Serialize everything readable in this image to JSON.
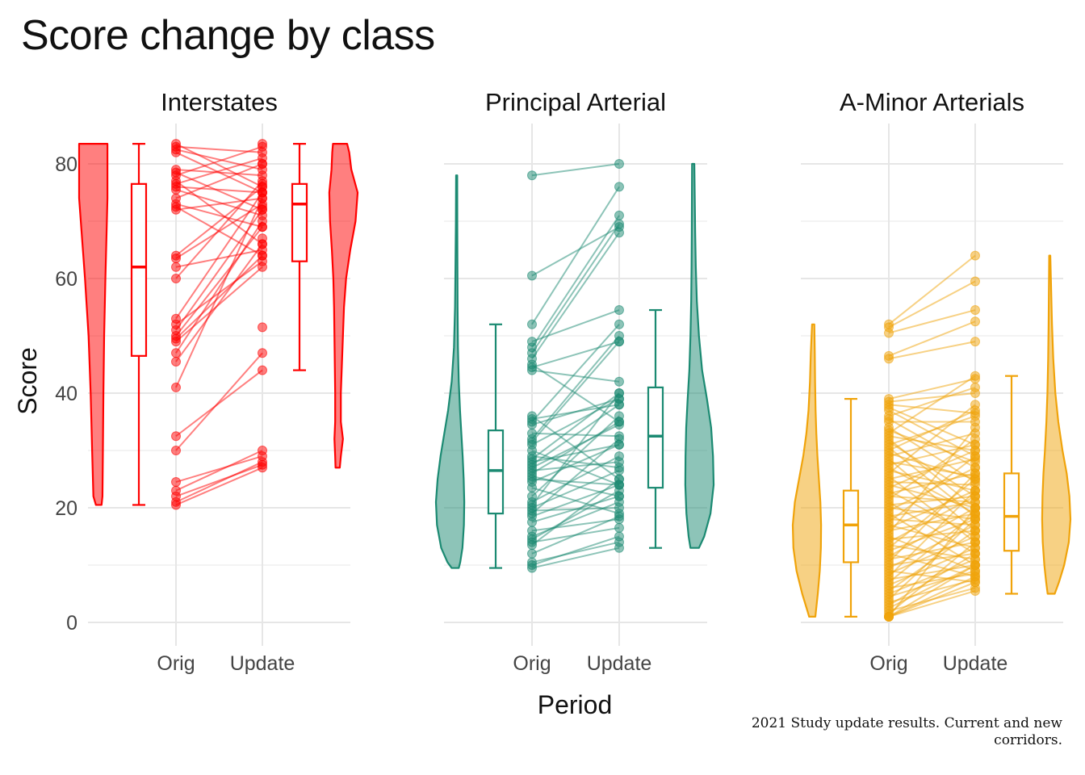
{
  "title": "Score change by class",
  "caption": "2021 Study update results. Current and new corridors.",
  "chart_data": {
    "type": "raincloud-paired",
    "xlabel": "Period",
    "ylabel": "Score",
    "ylim": [
      0,
      84
    ],
    "y_ticks": [
      0,
      20,
      40,
      60,
      80
    ],
    "x_categories": [
      "Orig",
      "Update"
    ],
    "grid": true,
    "facets": [
      {
        "name": "Interstates",
        "color": "#FF0000",
        "box_orig": {
          "min": 20.5,
          "q1": 46.5,
          "median": 62,
          "q3": 76.5,
          "max": 83.5
        },
        "box_update": {
          "min": 44,
          "q1": 63,
          "median": 73,
          "q3": 76.5,
          "max": 83.5
        },
        "violin_orig": [
          [
            20.5,
            0.2
          ],
          [
            22,
            0.32
          ],
          [
            30,
            0.38
          ],
          [
            40,
            0.45
          ],
          [
            50,
            0.55
          ],
          [
            60,
            0.72
          ],
          [
            68,
            0.88
          ],
          [
            74,
            1.0
          ],
          [
            80,
            1.0
          ],
          [
            83.5,
            1.0
          ]
        ],
        "violin_update": [
          [
            27,
            0.15
          ],
          [
            29,
            0.2
          ],
          [
            32,
            0.3
          ],
          [
            35,
            0.2
          ],
          [
            40,
            0.2
          ],
          [
            45,
            0.25
          ],
          [
            50,
            0.3
          ],
          [
            55,
            0.35
          ],
          [
            60,
            0.45
          ],
          [
            65,
            0.65
          ],
          [
            70,
            0.9
          ],
          [
            75,
            1.0
          ],
          [
            79,
            0.7
          ],
          [
            82,
            0.6
          ],
          [
            83.5,
            0.5
          ]
        ],
        "pairs": [
          [
            83.5,
            76
          ],
          [
            83,
            82
          ],
          [
            82.5,
            79
          ],
          [
            82,
            75
          ],
          [
            79,
            78
          ],
          [
            78.5,
            72
          ],
          [
            78,
            83
          ],
          [
            77,
            66
          ],
          [
            76.5,
            81
          ],
          [
            76,
            75
          ],
          [
            75.5,
            71
          ],
          [
            74,
            80
          ],
          [
            73,
            69
          ],
          [
            72.5,
            64
          ],
          [
            72,
            74
          ],
          [
            64,
            76
          ],
          [
            63.5,
            73
          ],
          [
            62,
            65
          ],
          [
            60,
            77
          ],
          [
            53,
            75
          ],
          [
            52,
            63
          ],
          [
            51,
            72
          ],
          [
            50,
            69
          ],
          [
            49.5,
            64
          ],
          [
            49,
            62
          ],
          [
            47,
            70
          ],
          [
            45.5,
            66
          ],
          [
            41,
            74
          ],
          [
            32.5,
            44
          ],
          [
            30,
            47
          ],
          [
            24.5,
            29
          ],
          [
            23,
            30
          ],
          [
            22,
            27.5
          ],
          [
            21,
            28
          ],
          [
            20.5,
            27
          ]
        ],
        "extra_update": [
          51.5,
          72.5,
          76.5,
          80,
          83.5,
          67
        ]
      },
      {
        "name": "Principal Arterial",
        "color": "#1B8A72",
        "box_orig": {
          "min": 9.5,
          "q1": 19,
          "median": 26.5,
          "q3": 33.5,
          "max": 52
        },
        "box_update": {
          "min": 13,
          "q1": 23.5,
          "median": 32.5,
          "q3": 41,
          "max": 54.5
        },
        "violin_orig": [
          [
            9.5,
            0.25
          ],
          [
            10.5,
            0.45
          ],
          [
            13,
            0.75
          ],
          [
            17,
            0.95
          ],
          [
            21,
            1.0
          ],
          [
            25,
            0.92
          ],
          [
            29,
            0.78
          ],
          [
            33,
            0.6
          ],
          [
            37,
            0.42
          ],
          [
            42,
            0.25
          ],
          [
            48,
            0.14
          ],
          [
            55,
            0.09
          ],
          [
            62,
            0.07
          ],
          [
            70,
            0.05
          ],
          [
            78,
            0.04
          ]
        ],
        "violin_update": [
          [
            13,
            0.3
          ],
          [
            15,
            0.55
          ],
          [
            19,
            0.85
          ],
          [
            24,
            1.0
          ],
          [
            29,
            0.97
          ],
          [
            34,
            0.88
          ],
          [
            39,
            0.68
          ],
          [
            44,
            0.45
          ],
          [
            50,
            0.3
          ],
          [
            56,
            0.2
          ],
          [
            62,
            0.15
          ],
          [
            68,
            0.12
          ],
          [
            74,
            0.1
          ],
          [
            80,
            0.08
          ]
        ],
        "pairs": [
          [
            78,
            80
          ],
          [
            60.5,
            69
          ],
          [
            52,
            76
          ],
          [
            49,
            54.5
          ],
          [
            48,
            71
          ],
          [
            47,
            69.5
          ],
          [
            46,
            68
          ],
          [
            45,
            35
          ],
          [
            44.5,
            49
          ],
          [
            44,
            42
          ],
          [
            36,
            25
          ],
          [
            35.5,
            38
          ],
          [
            35,
            52
          ],
          [
            34.5,
            39
          ],
          [
            33,
            32.5
          ],
          [
            32,
            50
          ],
          [
            31.5,
            49
          ],
          [
            31,
            39
          ],
          [
            30,
            24
          ],
          [
            29,
            27
          ],
          [
            28.5,
            40
          ],
          [
            28,
            31
          ],
          [
            27.5,
            38
          ],
          [
            27,
            34.5
          ],
          [
            26.5,
            28
          ],
          [
            26,
            35
          ],
          [
            25.5,
            22
          ],
          [
            25,
            24
          ],
          [
            24.5,
            31
          ],
          [
            23.5,
            19
          ],
          [
            22,
            36
          ],
          [
            21,
            29
          ],
          [
            20.5,
            40
          ],
          [
            20,
            26.5
          ],
          [
            19.5,
            20
          ],
          [
            19,
            32
          ],
          [
            18.5,
            24
          ],
          [
            17.5,
            22
          ],
          [
            16,
            18
          ],
          [
            15,
            21
          ],
          [
            14.5,
            23
          ],
          [
            14,
            16.5
          ],
          [
            13.5,
            25
          ],
          [
            12,
            18.5
          ],
          [
            10.5,
            14
          ],
          [
            10,
            15
          ],
          [
            9.5,
            13
          ]
        ]
      },
      {
        "name": "A-Minor Arterials",
        "color": "#F0A30A",
        "box_orig": {
          "min": 1,
          "q1": 10.5,
          "median": 17,
          "q3": 23,
          "max": 39
        },
        "box_update": {
          "min": 5,
          "q1": 12.5,
          "median": 18.5,
          "q3": 26,
          "max": 43
        },
        "violin_orig": [
          [
            1,
            0.22
          ],
          [
            2,
            0.3
          ],
          [
            5,
            0.55
          ],
          [
            9,
            0.82
          ],
          [
            13,
            0.97
          ],
          [
            17,
            1.0
          ],
          [
            21,
            0.9
          ],
          [
            25,
            0.7
          ],
          [
            29,
            0.5
          ],
          [
            33,
            0.35
          ],
          [
            37,
            0.25
          ],
          [
            42,
            0.18
          ],
          [
            47,
            0.14
          ],
          [
            52,
            0.08
          ]
        ],
        "violin_update": [
          [
            5,
            0.25
          ],
          [
            7,
            0.45
          ],
          [
            10,
            0.7
          ],
          [
            14,
            0.92
          ],
          [
            18,
            1.0
          ],
          [
            22,
            0.95
          ],
          [
            26,
            0.82
          ],
          [
            30,
            0.62
          ],
          [
            35,
            0.42
          ],
          [
            40,
            0.28
          ],
          [
            46,
            0.18
          ],
          [
            52,
            0.12
          ],
          [
            58,
            0.08
          ],
          [
            64,
            0.04
          ]
        ],
        "pairs": [
          [
            52,
            64
          ],
          [
            51.5,
            59.5
          ],
          [
            50.5,
            54.5
          ],
          [
            46.5,
            52.5
          ],
          [
            46,
            49
          ],
          [
            39,
            42.5
          ],
          [
            38.5,
            40
          ],
          [
            38,
            36.5
          ],
          [
            37.5,
            31
          ],
          [
            37,
            29
          ],
          [
            36,
            41
          ],
          [
            35.5,
            27
          ],
          [
            35,
            35
          ],
          [
            34,
            24.5
          ],
          [
            33.5,
            28
          ],
          [
            33,
            43
          ],
          [
            32.5,
            30
          ],
          [
            32,
            20
          ],
          [
            31.5,
            22
          ],
          [
            31,
            36
          ],
          [
            30.5,
            18.5
          ],
          [
            30,
            37
          ],
          [
            29.5,
            25
          ],
          [
            29,
            33
          ],
          [
            28.5,
            16
          ],
          [
            28,
            25.5
          ],
          [
            27.5,
            31
          ],
          [
            27,
            19
          ],
          [
            26.5,
            23
          ],
          [
            26,
            38
          ],
          [
            25.5,
            14
          ],
          [
            25,
            28.5
          ],
          [
            24.5,
            24
          ],
          [
            24,
            20
          ],
          [
            23.5,
            30
          ],
          [
            23,
            15
          ],
          [
            22.5,
            26
          ],
          [
            22,
            21
          ],
          [
            21.5,
            32
          ],
          [
            21,
            12
          ],
          [
            20.5,
            22
          ],
          [
            20,
            18
          ],
          [
            19.5,
            27
          ],
          [
            19,
            10
          ],
          [
            18.5,
            21
          ],
          [
            18,
            17
          ],
          [
            17.5,
            29
          ],
          [
            17,
            13
          ],
          [
            16.5,
            23
          ],
          [
            16,
            19
          ],
          [
            15.5,
            34
          ],
          [
            15,
            9
          ],
          [
            14.5,
            16
          ],
          [
            14,
            22
          ],
          [
            13.5,
            11
          ],
          [
            13,
            25
          ],
          [
            12.5,
            18
          ],
          [
            12,
            8
          ],
          [
            11.5,
            20
          ],
          [
            11,
            14
          ],
          [
            10.5,
            26
          ],
          [
            10,
            12
          ],
          [
            9.5,
            17
          ],
          [
            9,
            7
          ],
          [
            8.5,
            15
          ],
          [
            8,
            23
          ],
          [
            7.5,
            10
          ],
          [
            7,
            19
          ],
          [
            6.5,
            13
          ],
          [
            6,
            8.5
          ],
          [
            5.5,
            16
          ],
          [
            5,
            11
          ],
          [
            4.5,
            9
          ],
          [
            4,
            18
          ],
          [
            3.5,
            7.5
          ],
          [
            3,
            12
          ],
          [
            2.5,
            10
          ],
          [
            2,
            6
          ],
          [
            1.5,
            14
          ],
          [
            1,
            8
          ],
          [
            1,
            5.5
          ],
          [
            1,
            10
          ],
          [
            1,
            7
          ],
          [
            1,
            20
          ]
        ]
      }
    ]
  }
}
